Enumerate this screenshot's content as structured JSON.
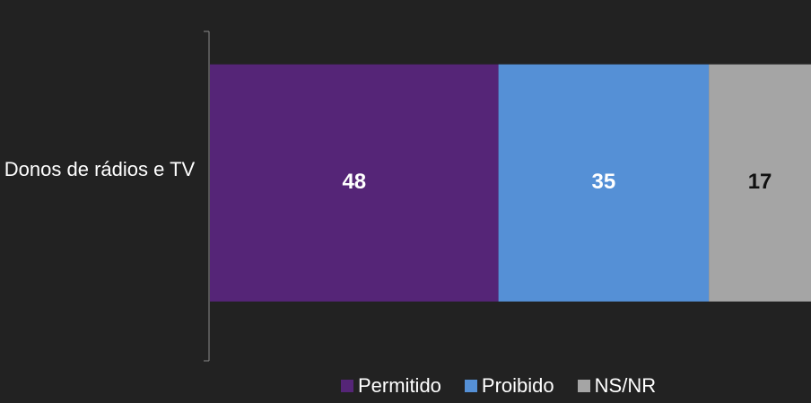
{
  "chart_data": {
    "type": "stacked_barh",
    "categories": [
      "Donos de rádios e TV"
    ],
    "series": [
      {
        "name": "Permitido",
        "color": "#552577",
        "values": [
          48
        ]
      },
      {
        "name": "Proibido",
        "color": "#5590d6",
        "values": [
          35
        ]
      },
      {
        "name": "NS/NR",
        "color": "#a5a5a5",
        "values": [
          17
        ]
      }
    ],
    "xlim": [
      0,
      100
    ]
  }
}
